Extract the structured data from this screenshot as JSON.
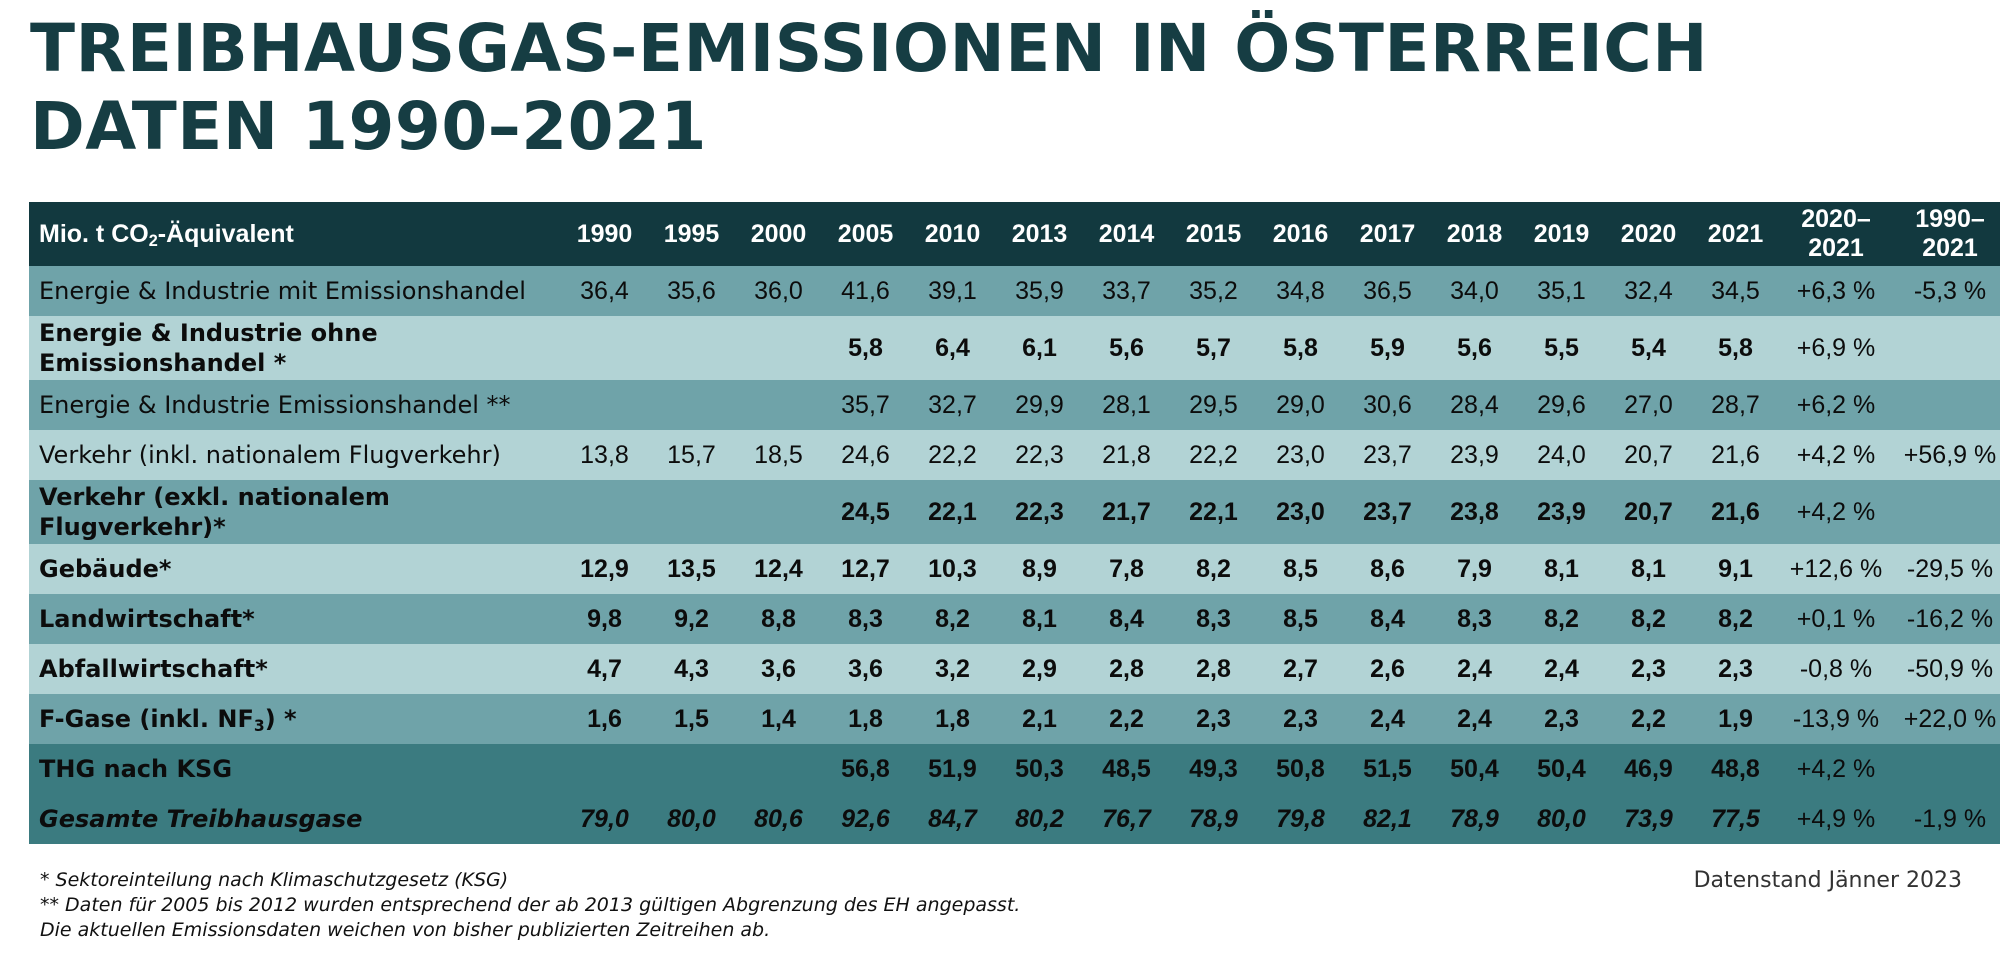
{
  "title": {
    "line1": "TREIBHAUSGAS-EMISSIONEN IN ÖSTERREICH",
    "line2": "DATEN 1990–2021"
  },
  "table": {
    "unit_prefix": "Mio. t CO",
    "unit_sub": "2",
    "unit_suffix": "-Äquivalent",
    "years": [
      "1990",
      "1995",
      "2000",
      "2005",
      "2010",
      "2013",
      "2014",
      "2015",
      "2016",
      "2017",
      "2018",
      "2019",
      "2020",
      "2021"
    ],
    "change_headers": [
      {
        "line1": "2020–",
        "line2": "2021"
      },
      {
        "line1": "1990–",
        "line2": "2021"
      }
    ],
    "rows": [
      {
        "label": "Energie & Industrie mit Emissionshandel",
        "values": [
          "36,4",
          "35,6",
          "36,0",
          "41,6",
          "39,1",
          "35,9",
          "33,7",
          "35,2",
          "34,8",
          "36,5",
          "34,0",
          "35,1",
          "32,4",
          "34,5"
        ],
        "change_2020_2021": "+6,3 %",
        "change_1990_2021": "-5,3 %"
      },
      {
        "label": "Energie & Industrie ohne Emissionshandel *",
        "values": [
          "",
          "",
          "",
          "5,8",
          "6,4",
          "6,1",
          "5,6",
          "5,7",
          "5,8",
          "5,9",
          "5,6",
          "5,5",
          "5,4",
          "5,8"
        ],
        "change_2020_2021": "+6,9 %",
        "change_1990_2021": ""
      },
      {
        "label": "Energie & Industrie Emissionshandel **",
        "values": [
          "",
          "",
          "",
          "35,7",
          "32,7",
          "29,9",
          "28,1",
          "29,5",
          "29,0",
          "30,6",
          "28,4",
          "29,6",
          "27,0",
          "28,7"
        ],
        "change_2020_2021": "+6,2 %",
        "change_1990_2021": ""
      },
      {
        "label": "Verkehr (inkl. nationalem Flugverkehr)",
        "values": [
          "13,8",
          "15,7",
          "18,5",
          "24,6",
          "22,2",
          "22,3",
          "21,8",
          "22,2",
          "23,0",
          "23,7",
          "23,9",
          "24,0",
          "20,7",
          "21,6"
        ],
        "change_2020_2021": "+4,2 %",
        "change_1990_2021": "+56,9 %"
      },
      {
        "label": "Verkehr (exkl. nationalem Flugverkehr)*",
        "values": [
          "",
          "",
          "",
          "24,5",
          "22,1",
          "22,3",
          "21,7",
          "22,1",
          "23,0",
          "23,7",
          "23,8",
          "23,9",
          "20,7",
          "21,6"
        ],
        "change_2020_2021": "+4,2 %",
        "change_1990_2021": ""
      },
      {
        "label": "Gebäude*",
        "values": [
          "12,9",
          "13,5",
          "12,4",
          "12,7",
          "10,3",
          "8,9",
          "7,8",
          "8,2",
          "8,5",
          "8,6",
          "7,9",
          "8,1",
          "8,1",
          "9,1"
        ],
        "change_2020_2021": "+12,6 %",
        "change_1990_2021": "-29,5 %"
      },
      {
        "label": "Landwirtschaft*",
        "values": [
          "9,8",
          "9,2",
          "8,8",
          "8,3",
          "8,2",
          "8,1",
          "8,4",
          "8,3",
          "8,5",
          "8,4",
          "8,3",
          "8,2",
          "8,2",
          "8,2"
        ],
        "change_2020_2021": "+0,1 %",
        "change_1990_2021": "-16,2 %"
      },
      {
        "label": "Abfallwirtschaft*",
        "values": [
          "4,7",
          "4,3",
          "3,6",
          "3,6",
          "3,2",
          "2,9",
          "2,8",
          "2,8",
          "2,7",
          "2,6",
          "2,4",
          "2,4",
          "2,3",
          "2,3"
        ],
        "change_2020_2021": "-0,8 %",
        "change_1990_2021": "-50,9 %"
      },
      {
        "label_prefix": "F-Gase (inkl. NF",
        "label_sub": "3",
        "label_suffix": ") *",
        "values": [
          "1,6",
          "1,5",
          "1,4",
          "1,8",
          "1,8",
          "2,1",
          "2,2",
          "2,3",
          "2,3",
          "2,4",
          "2,4",
          "2,3",
          "2,2",
          "1,9"
        ],
        "change_2020_2021": "-13,9 %",
        "change_1990_2021": "+22,0 %"
      },
      {
        "label": "THG nach KSG",
        "values": [
          "",
          "",
          "",
          "56,8",
          "51,9",
          "50,3",
          "48,5",
          "49,3",
          "50,8",
          "51,5",
          "50,4",
          "50,4",
          "46,9",
          "48,8"
        ],
        "change_2020_2021": "+4,2 %",
        "change_1990_2021": ""
      },
      {
        "label": "Gesamte Treibhausgase",
        "values": [
          "79,0",
          "80,0",
          "80,6",
          "92,6",
          "84,7",
          "80,2",
          "76,7",
          "78,9",
          "79,8",
          "82,1",
          "78,9",
          "80,0",
          "73,9",
          "77,5"
        ],
        "change_2020_2021": "+4,9 %",
        "change_1990_2021": "-1,9 %"
      }
    ]
  },
  "footnotes": [
    "* Sektoreinteilung nach Klimaschutzgesetz  (KSG)",
    "** Daten für 2005 bis 2012 wurden entsprechend der ab 2013 gültigen Abgrenzung des EH angepasst.",
    "Die aktuellen Emissionsdaten weichen von bisher publizierten Zeitreihen ab."
  ],
  "data_status": "Datenstand Jänner 2023",
  "colors": {
    "title": "#163d43",
    "header_bg": "#12393f",
    "row_dark": "#6fa3a9",
    "row_light": "#b2d3d5",
    "summary_bg": "#3b7b80"
  }
}
